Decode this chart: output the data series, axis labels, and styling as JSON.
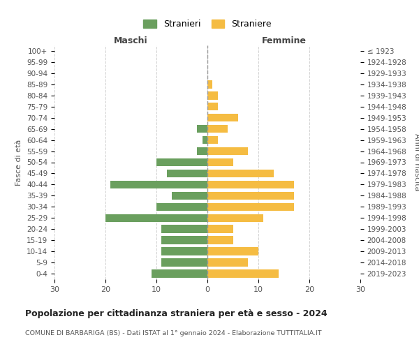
{
  "age_groups": [
    "0-4",
    "5-9",
    "10-14",
    "15-19",
    "20-24",
    "25-29",
    "30-34",
    "35-39",
    "40-44",
    "45-49",
    "50-54",
    "55-59",
    "60-64",
    "65-69",
    "70-74",
    "75-79",
    "80-84",
    "85-89",
    "90-94",
    "95-99",
    "100+"
  ],
  "birth_years": [
    "2019-2023",
    "2014-2018",
    "2009-2013",
    "2004-2008",
    "1999-2003",
    "1994-1998",
    "1989-1993",
    "1984-1988",
    "1979-1983",
    "1974-1978",
    "1969-1973",
    "1964-1968",
    "1959-1963",
    "1954-1958",
    "1949-1953",
    "1944-1948",
    "1939-1943",
    "1934-1938",
    "1929-1933",
    "1924-1928",
    "≤ 1923"
  ],
  "maschi": [
    11,
    9,
    9,
    9,
    9,
    20,
    10,
    7,
    19,
    8,
    10,
    2,
    1,
    2,
    0,
    0,
    0,
    0,
    0,
    0,
    0
  ],
  "femmine": [
    14,
    8,
    10,
    5,
    5,
    11,
    17,
    17,
    17,
    13,
    5,
    8,
    2,
    4,
    6,
    2,
    2,
    1,
    0,
    0,
    0
  ],
  "color_maschi": "#6a9f5e",
  "color_femmine": "#f5bc42",
  "title": "Popolazione per cittadinanza straniera per età e sesso - 2024",
  "subtitle": "COMUNE DI BARBARIGA (BS) - Dati ISTAT al 1° gennaio 2024 - Elaborazione TUTTITALIA.IT",
  "xlabel_left": "Maschi",
  "xlabel_right": "Femmine",
  "ylabel_left": "Fasce di età",
  "ylabel_right": "Anni di nascita",
  "legend_stranieri": "Stranieri",
  "legend_straniere": "Straniere",
  "xlim": 30,
  "background_color": "#ffffff",
  "grid_color": "#d0d0d0"
}
